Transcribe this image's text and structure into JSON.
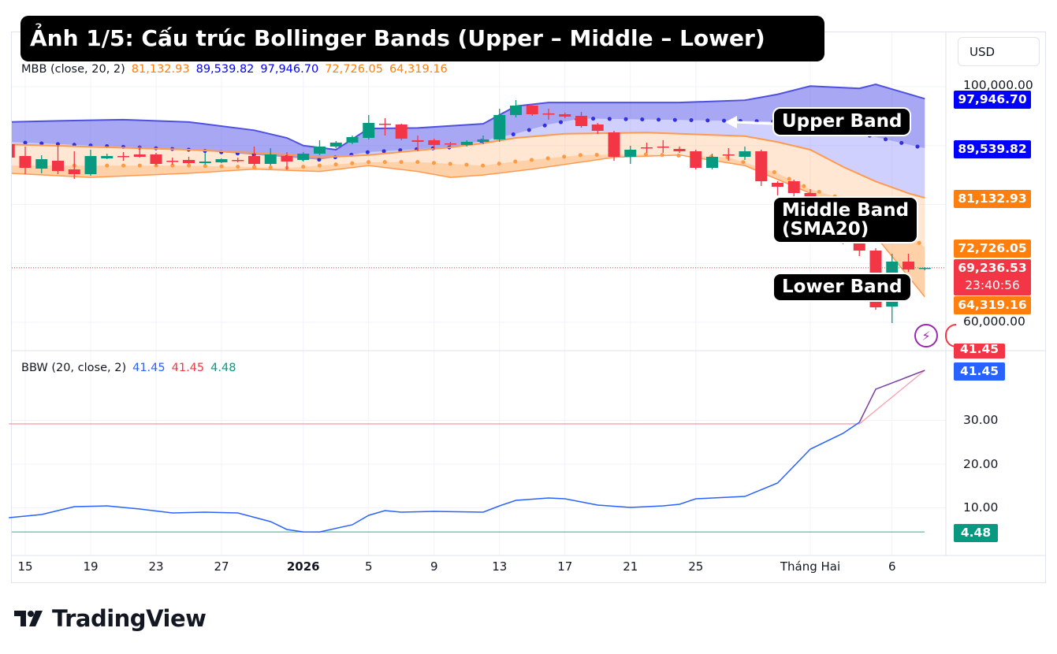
{
  "title": "Ảnh 1/5: Cấu trúc Bollinger Bands (Upper – Middle – Lower)",
  "currency_button": "USD",
  "colors": {
    "up": "#089981",
    "down": "#f23645",
    "upper": "#0000ff",
    "basis": "#ff7f0e",
    "bbw": "#2962ff",
    "bbw_high": "#f23645",
    "bbw_low": "#089981"
  },
  "main_legend": {
    "name": "MBB (close, 20, 2)",
    "basis": "81,132.93",
    "upper1": "89,539.82",
    "upper2": "97,946.70",
    "lower1": "72,726.05",
    "lower2": "64,319.16"
  },
  "bbw_legend": {
    "name": "BBW (20, close, 2)",
    "bbw": "41.45",
    "high": "41.45",
    "low": "4.48"
  },
  "price_axis": {
    "ticks": [
      "100,000.00",
      "60,000.00"
    ],
    "labels": {
      "upper2": "97,946.70",
      "upper1": "89,539.82",
      "basis": "81,132.93",
      "lower1": "72,726.05",
      "last": "69,236.53",
      "countdown": "23:40:56",
      "lower2": "64,319.16"
    }
  },
  "bbw_axis": {
    "ticks": [
      "30.00",
      "20.00",
      "10.00"
    ],
    "labels": {
      "high": "41.45",
      "bbw": "41.45",
      "low": "4.48"
    }
  },
  "time_axis": [
    {
      "label": "15",
      "date": "2025-12-15"
    },
    {
      "label": "19",
      "date": "2025-12-19"
    },
    {
      "label": "23",
      "date": "2025-12-23"
    },
    {
      "label": "27",
      "date": "2025-12-27"
    },
    {
      "label": "2026",
      "date": "2026-01-01",
      "bold": true
    },
    {
      "label": "5",
      "date": "2026-01-05"
    },
    {
      "label": "9",
      "date": "2026-01-09"
    },
    {
      "label": "13",
      "date": "2026-01-13"
    },
    {
      "label": "17",
      "date": "2026-01-17"
    },
    {
      "label": "21",
      "date": "2026-01-21"
    },
    {
      "label": "25",
      "date": "2026-01-25"
    },
    {
      "label": "Tháng Hai",
      "date": "2026-02-01"
    },
    {
      "label": "6",
      "date": "2026-02-06"
    }
  ],
  "annotations": {
    "upper": "Upper Band",
    "middle_line1": "Middle Band",
    "middle_line2": "(SMA20)",
    "lower": "Lower Band"
  },
  "icons": {
    "alert": "lightning-icon",
    "other": "calendar-icon"
  },
  "logo": "TradingView",
  "chart_data": [
    {
      "type": "candlestick",
      "ylim": [
        57000,
        103000
      ],
      "last_price": 69236.53,
      "candles": [
        [
          "2025-12-14",
          90233,
          90634,
          87556,
          87958
        ],
        [
          "2025-12-15",
          88226,
          89831,
          85148,
          86218
        ],
        [
          "2025-12-16",
          86084,
          88359,
          85282,
          87690
        ],
        [
          "2025-12-17",
          87422,
          90099,
          85148,
          85683
        ],
        [
          "2025-12-18",
          85951,
          89028,
          84345,
          85148
        ],
        [
          "2025-12-19",
          85148,
          89296,
          84880,
          88226
        ],
        [
          "2025-12-20",
          87824,
          88627,
          87690,
          88226
        ],
        [
          "2025-12-21",
          88226,
          88895,
          87422,
          88160
        ],
        [
          "2025-12-22",
          88493,
          90099,
          87958,
          88092
        ],
        [
          "2025-12-23",
          88493,
          88761,
          86620,
          86888
        ],
        [
          "2025-12-24",
          87422,
          87958,
          86754,
          87356
        ],
        [
          "2025-12-25",
          87556,
          88092,
          86888,
          87021
        ],
        [
          "2025-12-26",
          87021,
          88761,
          86754,
          87289
        ],
        [
          "2025-12-27",
          87155,
          87824,
          87021,
          87690
        ],
        [
          "2025-12-28",
          87556,
          87958,
          87155,
          87490
        ],
        [
          "2025-12-29",
          88226,
          89831,
          86620,
          86888
        ],
        [
          "2025-12-30",
          86888,
          89564,
          86620,
          88493
        ],
        [
          "2025-12-31",
          88226,
          88895,
          85951,
          87289
        ],
        [
          "2026-01-01",
          87556,
          88895,
          87289,
          88627
        ],
        [
          "2026-01-02",
          88627,
          90901,
          88359,
          89831
        ],
        [
          "2026-01-03",
          89831,
          90768,
          89564,
          90500
        ],
        [
          "2026-01-04",
          90500,
          91704,
          90233,
          91437
        ],
        [
          "2026-01-05",
          91303,
          95183,
          91035,
          93845
        ],
        [
          "2026-01-06",
          93711,
          94648,
          91704,
          93578
        ],
        [
          "2026-01-07",
          93578,
          93711,
          90902,
          91169
        ],
        [
          "2026-01-08",
          90902,
          91704,
          89028,
          90634
        ],
        [
          "2026-01-09",
          90902,
          91169,
          89296,
          90099
        ],
        [
          "2026-01-10",
          90366,
          90634,
          89965,
          90233
        ],
        [
          "2026-01-11",
          90099,
          90902,
          89831,
          90634
        ],
        [
          "2026-01-12",
          90634,
          91704,
          90233,
          91035
        ],
        [
          "2026-01-13",
          91035,
          96254,
          90634,
          95183
        ],
        [
          "2026-01-14",
          95183,
          97725,
          94781,
          96789
        ],
        [
          "2026-01-15",
          96789,
          97056,
          95049,
          95317
        ],
        [
          "2026-01-16",
          95451,
          96254,
          94380,
          95384
        ],
        [
          "2026-01-17",
          95317,
          95585,
          94648,
          94916
        ],
        [
          "2026-01-18",
          95049,
          95719,
          93042,
          93310
        ],
        [
          "2026-01-19",
          93578,
          93845,
          91972,
          92507
        ],
        [
          "2026-01-20",
          92239,
          92507,
          87422,
          88092
        ],
        [
          "2026-01-21",
          88092,
          89965,
          86888,
          89296
        ],
        [
          "2026-01-22",
          89697,
          90500,
          88761,
          89630
        ],
        [
          "2026-01-23",
          89831,
          90902,
          88761,
          89764
        ],
        [
          "2026-01-24",
          89430,
          89831,
          88761,
          89028
        ],
        [
          "2026-01-25",
          89028,
          89296,
          85951,
          86218
        ],
        [
          "2026-01-26",
          86218,
          88627,
          85951,
          88092
        ],
        [
          "2026-01-27",
          88493,
          89564,
          87422,
          88426
        ],
        [
          "2026-01-28",
          88092,
          89831,
          87556,
          89028
        ],
        [
          "2026-01-29",
          89028,
          89296,
          83141,
          83944
        ],
        [
          "2026-01-30",
          83676,
          83944,
          81536,
          83007
        ],
        [
          "2026-01-31",
          83944,
          84212,
          81268,
          81937
        ],
        [
          "2026-02-01",
          81937,
          82606,
          78860,
          79663
        ],
        [
          "2026-02-02",
          79663,
          80599,
          75648,
          76585
        ],
        [
          "2026-02-03",
          76585,
          77923,
          73240,
          74578
        ],
        [
          "2026-02-04",
          74578,
          75916,
          71233,
          72170
        ],
        [
          "2026-02-05",
          72170,
          72571,
          62134,
          62536
        ],
        [
          "2026-02-06",
          62670,
          71634,
          59860,
          70296
        ],
        [
          "2026-02-07",
          70296,
          71634,
          68556,
          68958
        ],
        [
          "2026-02-08",
          69092,
          69360,
          68824,
          69236.53
        ]
      ],
      "bands": {
        "upper2": [
          [
            "2025-12-14",
            94000
          ],
          [
            "2025-12-17",
            94200
          ],
          [
            "2025-12-21",
            94400
          ],
          [
            "2025-12-25",
            94000
          ],
          [
            "2025-12-29",
            92600
          ],
          [
            "2025-12-31",
            91300
          ],
          [
            "2026-01-01",
            90000
          ],
          [
            "2026-01-03",
            89300
          ],
          [
            "2026-01-05",
            92900
          ],
          [
            "2026-01-08",
            93000
          ],
          [
            "2026-01-12",
            93700
          ],
          [
            "2026-01-14",
            96700
          ],
          [
            "2026-01-16",
            97300
          ],
          [
            "2026-01-24",
            97300
          ],
          [
            "2026-01-28",
            97700
          ],
          [
            "2026-01-30",
            98700
          ],
          [
            "2026-02-01",
            100100
          ],
          [
            "2026-02-04",
            99700
          ],
          [
            "2026-02-05",
            100400
          ],
          [
            "2026-02-08",
            97946.7
          ]
        ],
        "upper1": [
          [
            "2025-12-14",
            90600
          ],
          [
            "2025-12-25",
            89300
          ],
          [
            "2025-12-31",
            88000
          ],
          [
            "2026-01-02",
            87600
          ],
          [
            "2026-01-05",
            88900
          ],
          [
            "2026-01-10",
            89700
          ],
          [
            "2026-01-14",
            92000
          ],
          [
            "2026-01-16",
            93600
          ],
          [
            "2026-01-18",
            94600
          ],
          [
            "2026-02-01",
            94000
          ],
          [
            "2026-02-08",
            89539.82
          ]
        ],
        "basis": [
          [
            "2025-12-14",
            90200
          ],
          [
            "2025-12-25",
            89300
          ],
          [
            "2025-12-31",
            88500
          ],
          [
            "2026-01-02",
            88000
          ],
          [
            "2026-01-05",
            88400
          ],
          [
            "2026-01-10",
            89700
          ],
          [
            "2026-01-12",
            90400
          ],
          [
            "2026-01-14",
            91300
          ],
          [
            "2026-01-17",
            92000
          ],
          [
            "2026-01-22",
            92200
          ],
          [
            "2026-01-28",
            91600
          ],
          [
            "2026-01-30",
            90600
          ],
          [
            "2026-02-01",
            89300
          ],
          [
            "2026-02-03",
            86400
          ],
          [
            "2026-02-05",
            83900
          ],
          [
            "2026-02-07",
            81900
          ],
          [
            "2026-02-08",
            81132.93
          ]
        ],
        "lower1": [
          [
            "2025-12-14",
            86600
          ],
          [
            "2025-12-25",
            86600
          ],
          [
            "2025-12-31",
            86200
          ],
          [
            "2026-01-05",
            87200
          ],
          [
            "2026-01-08",
            87200
          ],
          [
            "2026-01-12",
            86600
          ],
          [
            "2026-01-14",
            87300
          ],
          [
            "2026-01-18",
            88400
          ],
          [
            "2026-01-22",
            88500
          ],
          [
            "2026-01-27",
            88000
          ],
          [
            "2026-01-30",
            85300
          ],
          [
            "2026-02-01",
            82600
          ],
          [
            "2026-02-05",
            79300
          ],
          [
            "2026-02-08",
            72726.05
          ]
        ],
        "lower2": [
          [
            "2025-12-14",
            85300
          ],
          [
            "2025-12-19",
            84600
          ],
          [
            "2025-12-25",
            85300
          ],
          [
            "2025-12-29",
            86000
          ],
          [
            "2026-01-02",
            85600
          ],
          [
            "2026-01-05",
            86600
          ],
          [
            "2026-01-08",
            85600
          ],
          [
            "2026-01-10",
            84600
          ],
          [
            "2026-01-12",
            85000
          ],
          [
            "2026-01-15",
            86000
          ],
          [
            "2026-01-20",
            88000
          ],
          [
            "2026-01-24",
            88400
          ],
          [
            "2026-01-28",
            86600
          ],
          [
            "2026-02-01",
            81900
          ],
          [
            "2026-02-05",
            74600
          ],
          [
            "2026-02-08",
            64319.16
          ]
        ]
      }
    },
    {
      "type": "line",
      "name": "BBW (20, close, 2)",
      "ylim": [
        0,
        45
      ],
      "high_line": [
        [
          "2025-12-14",
          29.2
        ],
        [
          "2026-02-04",
          29.2
        ],
        [
          "2026-02-08",
          41.45
        ]
      ],
      "low_line": 4.48,
      "points": [
        [
          "2025-12-14",
          7.75
        ],
        [
          "2025-12-16",
          8.47
        ],
        [
          "2025-12-18",
          10.27
        ],
        [
          "2025-12-20",
          10.45
        ],
        [
          "2025-12-22",
          9.73
        ],
        [
          "2025-12-24",
          8.83
        ],
        [
          "2025-12-26",
          9.01
        ],
        [
          "2025-12-28",
          8.83
        ],
        [
          "2025-12-30",
          6.85
        ],
        [
          "2025-12-31",
          5.05
        ],
        [
          "2026-01-01",
          4.5
        ],
        [
          "2026-01-02",
          4.48
        ],
        [
          "2026-01-04",
          6.13
        ],
        [
          "2026-01-05",
          8.29
        ],
        [
          "2026-01-06",
          9.37
        ],
        [
          "2026-01-07",
          9.01
        ],
        [
          "2026-01-09",
          9.19
        ],
        [
          "2026-01-12",
          9.01
        ],
        [
          "2026-01-13",
          10.45
        ],
        [
          "2026-01-14",
          11.71
        ],
        [
          "2026-01-16",
          12.25
        ],
        [
          "2026-01-17",
          12.07
        ],
        [
          "2026-01-19",
          10.63
        ],
        [
          "2026-01-21",
          10.09
        ],
        [
          "2026-01-23",
          10.45
        ],
        [
          "2026-01-24",
          10.81
        ],
        [
          "2026-01-25",
          12.07
        ],
        [
          "2026-01-28",
          12.61
        ],
        [
          "2026-01-30",
          15.68
        ],
        [
          "2026-02-01",
          23.42
        ],
        [
          "2026-02-03",
          27.03
        ],
        [
          "2026-02-04",
          29.55
        ],
        [
          "2026-02-05",
          37.12
        ],
        [
          "2026-02-07",
          40.0
        ],
        [
          "2026-02-08",
          41.45
        ]
      ]
    }
  ]
}
